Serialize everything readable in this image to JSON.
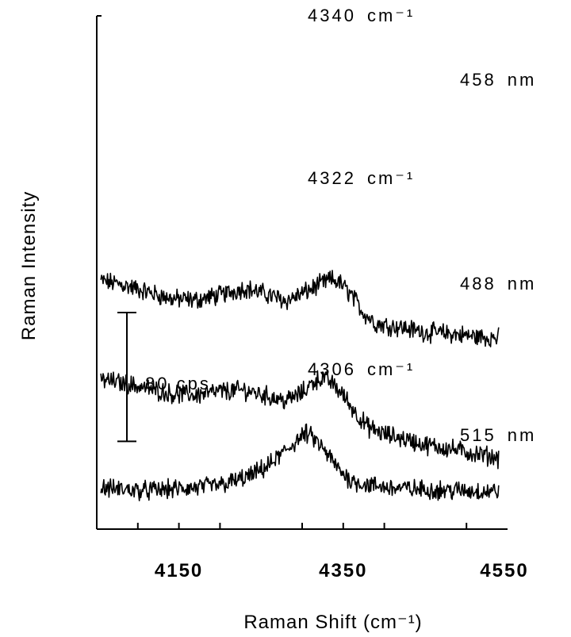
{
  "chart_data": {
    "type": "line",
    "title": "",
    "xlabel": "Raman Shift (cm⁻¹)",
    "ylabel": "Raman Intensity",
    "xlim": [
      4050,
      4550
    ],
    "xticks": [
      4150,
      4350,
      4550
    ],
    "xtick_labels": [
      "4150",
      "4350",
      "4550"
    ],
    "grid": false,
    "legend": "none",
    "scale_bar": {
      "label": "80 cps",
      "value_cps": 80
    },
    "series": [
      {
        "name": "458 nm",
        "peak_label": "4340 cm⁻¹",
        "x": [
          4055,
          4080,
          4110,
          4140,
          4170,
          4200,
          4230,
          4260,
          4280,
          4300,
          4320,
          4335,
          4345,
          4360,
          4375,
          4390,
          4420,
          4450,
          4480,
          4510,
          4540
        ],
        "y": [
          310,
          305,
          295,
          285,
          283,
          290,
          300,
          290,
          282,
          292,
          304,
          312,
          308,
          290,
          265,
          250,
          245,
          238,
          236,
          232,
          230
        ]
      },
      {
        "name": "488 nm",
        "peak_label": "4322 cm⁻¹",
        "x": [
          4055,
          4080,
          4110,
          4140,
          4170,
          4200,
          4230,
          4260,
          4280,
          4300,
          4315,
          4325,
          4335,
          4350,
          4365,
          4380,
          4400,
          4420,
          4450,
          4480,
          4510,
          4540
        ],
        "y": [
          172,
          167,
          160,
          152,
          150,
          155,
          157,
          148,
          142,
          153,
          170,
          174,
          168,
          150,
          125,
          105,
          95,
          90,
          80,
          75,
          68,
          62
        ]
      },
      {
        "name": "515 nm",
        "peak_label": "4306 cm⁻¹",
        "x": [
          4055,
          4080,
          4110,
          4140,
          4170,
          4200,
          4220,
          4240,
          4260,
          4280,
          4295,
          4305,
          4315,
          4330,
          4345,
          4360,
          4380,
          4410,
          4440,
          4470,
          4500,
          4540
        ],
        "y": [
          20,
          18,
          16,
          18,
          20,
          24,
          30,
          38,
          52,
          72,
          88,
          96,
          88,
          68,
          45,
          30,
          24,
          20,
          18,
          17,
          16,
          15
        ]
      }
    ]
  }
}
